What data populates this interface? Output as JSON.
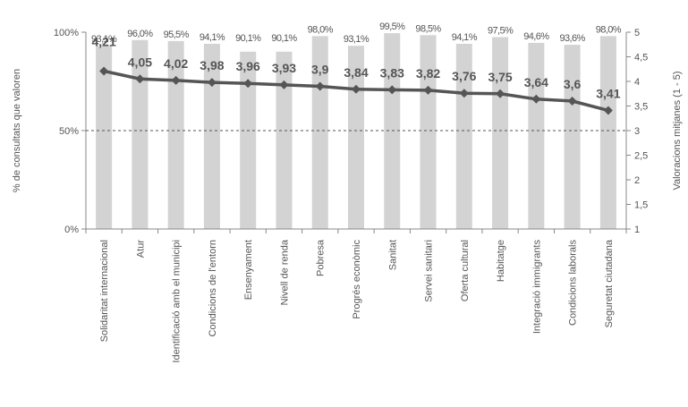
{
  "chart_data": {
    "type": "bar",
    "categories": [
      "Solidaritat internacional",
      "Atur",
      "Identificació amb el municipi",
      "Condicions de l'entorn",
      "Ensenyament",
      "Nivell de renda",
      "Pobresa",
      "Progrés econòmic",
      "Sanitat",
      "Servei sanitari",
      "Oferta cultural",
      "Habitatge",
      "Integració immigrants",
      "Condicions laborals",
      "Seguretat ciutadana"
    ],
    "series": [
      {
        "type": "bar",
        "axis": "left",
        "values": [
          93.1,
          96.0,
          95.5,
          94.1,
          90.1,
          90.1,
          98.0,
          93.1,
          99.5,
          98.5,
          94.1,
          97.5,
          94.6,
          93.6,
          98.0
        ],
        "labels": [
          "93,1%",
          "96,0%",
          "95,5%",
          "94,1%",
          "90,1%",
          "90,1%",
          "98,0%",
          "93,1%",
          "99,5%",
          "98,5%",
          "94,1%",
          "97,5%",
          "94,6%",
          "93,6%",
          "98,0%"
        ]
      },
      {
        "type": "line",
        "axis": "right",
        "values": [
          4.21,
          4.05,
          4.02,
          3.98,
          3.96,
          3.93,
          3.9,
          3.84,
          3.83,
          3.82,
          3.76,
          3.75,
          3.64,
          3.6,
          3.41
        ],
        "labels": [
          "4,21",
          "4,05",
          "4,02",
          "3,98",
          "3,96",
          "3,93",
          "3,9",
          "3,84",
          "3,83",
          "3,82",
          "3,76",
          "3,75",
          "3,64",
          "3,6",
          "3,41"
        ]
      }
    ],
    "ylabel": "% de consultats que valoren",
    "y2label": "Valoracions mitjanes (1 - 5)",
    "ylim": [
      0,
      100
    ],
    "y2lim": [
      1,
      5
    ],
    "yticks": [
      "0%",
      "50%",
      "100%"
    ],
    "y2ticks": [
      "1",
      "1,5",
      "2",
      "2,5",
      "3",
      "3,5",
      "4",
      "4,5",
      "5"
    ],
    "gridlines": "dashed at 50%",
    "colors": {
      "bar": "#d3d3d3",
      "line": "#555555",
      "text": "#555555",
      "axis": "#888888"
    }
  }
}
